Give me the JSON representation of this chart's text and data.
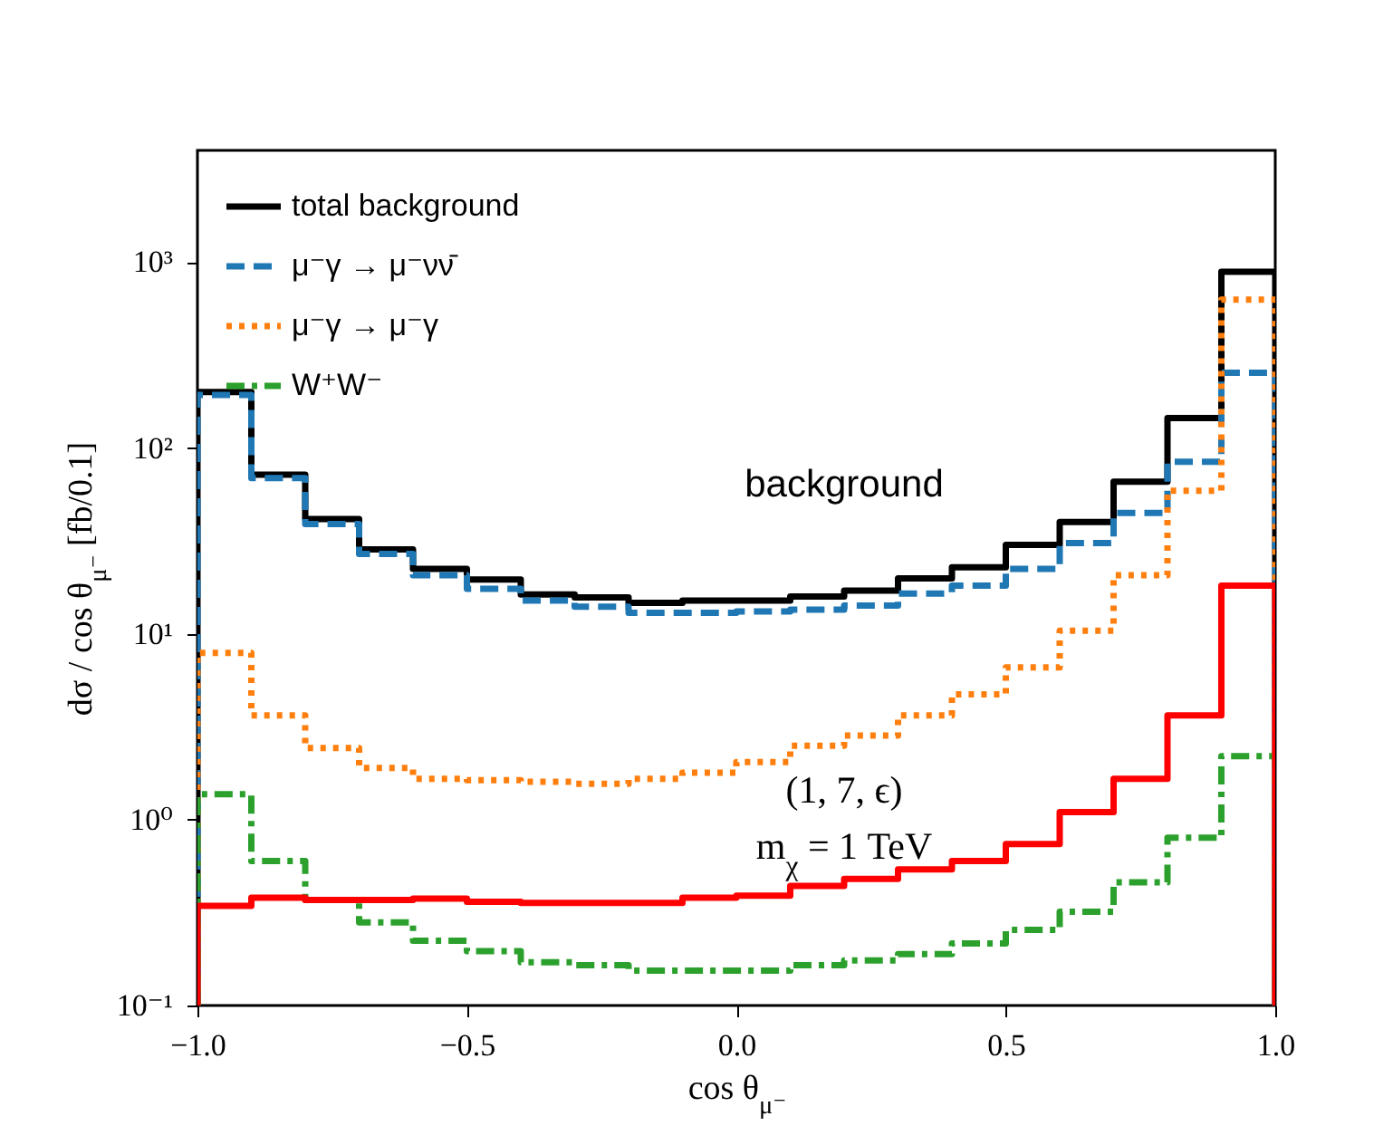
{
  "chart_data": {
    "type": "histogram",
    "xlabel": "cos θ$_{μ⁻}$",
    "ylabel": "dσ / cos θ$_{μ⁻}$ [fb/0.1]",
    "bins": [
      -1.0,
      -0.9,
      -0.8,
      -0.7,
      -0.6,
      -0.5,
      -0.4,
      -0.3,
      -0.2,
      -0.1,
      0.0,
      0.1,
      0.2,
      0.3,
      0.4,
      0.5,
      0.6,
      0.7,
      0.8,
      0.9,
      1.0
    ],
    "series": [
      {
        "name": "total background",
        "color": "#000000",
        "line_style": "solid",
        "values": [
          200,
          72,
          41.5,
          28.5,
          22.4,
          19.6,
          16.3,
          15.7,
          14.7,
          15.1,
          15.1,
          15.9,
          17.1,
          19.9,
          22.8,
          30.1,
          40,
          66,
          145,
          890
        ]
      },
      {
        "name": "μ⁻γ → μ⁻νν̄",
        "color": "#1f77b4",
        "line_style": "dashed",
        "values": [
          193,
          69,
          39,
          26.9,
          20.7,
          17.5,
          15.1,
          14,
          13,
          13,
          13.2,
          13.5,
          14.2,
          16.5,
          18.2,
          22.4,
          30.8,
          44.8,
          84.5,
          254
        ]
      },
      {
        "name": "μ⁻γ → μ⁻γ",
        "color": "#ff7f0e",
        "line_style": "dotted",
        "values": [
          7.9,
          3.64,
          2.43,
          1.9,
          1.66,
          1.63,
          1.6,
          1.56,
          1.66,
          1.79,
          2.04,
          2.5,
          2.84,
          3.64,
          4.73,
          6.6,
          10.4,
          20.7,
          59,
          630
        ]
      },
      {
        "name": "W⁺W⁻",
        "color": "#2ca02c",
        "line_style": "dashdot",
        "values": [
          1.37,
          0.6,
          0.37,
          0.28,
          0.223,
          0.196,
          0.171,
          0.165,
          0.154,
          0.154,
          0.154,
          0.165,
          0.175,
          0.189,
          0.216,
          0.255,
          0.32,
          0.46,
          0.8,
          2.2
        ]
      },
      {
        "color": "#ff0000",
        "line_style": "solid",
        "values": [
          0.344,
          0.38,
          0.37,
          0.37,
          0.376,
          0.362,
          0.357,
          0.357,
          0.357,
          0.38,
          0.39,
          0.44,
          0.48,
          0.54,
          0.6,
          0.74,
          1.1,
          1.66,
          3.64,
          18.2
        ]
      }
    ],
    "annotations": [
      "background",
      "(1, 7, ϵ)",
      "m$_{χ}$ = 1 TeV"
    ],
    "log": "y",
    "xlim": [
      -1.0,
      1.0
    ],
    "xticks": [
      {
        "value": -1.0,
        "label": "−1.0"
      },
      {
        "value": -0.5,
        "label": "−0.5"
      },
      {
        "value": 0.0,
        "label": "0.0"
      },
      {
        "value": 0.5,
        "label": "0.5"
      },
      {
        "value": 1.0,
        "label": "1.0"
      }
    ],
    "ylim": [
      0.1,
      4000
    ],
    "yticks": [
      {
        "value": 0.1,
        "label": "10⁻¹"
      },
      {
        "value": 1,
        "label": "10⁰"
      },
      {
        "value": 10,
        "label": "10¹"
      },
      {
        "value": 100,
        "label": "10²"
      },
      {
        "value": 1000,
        "label": "10³"
      }
    ],
    "grid": false,
    "legend": "top left"
  }
}
